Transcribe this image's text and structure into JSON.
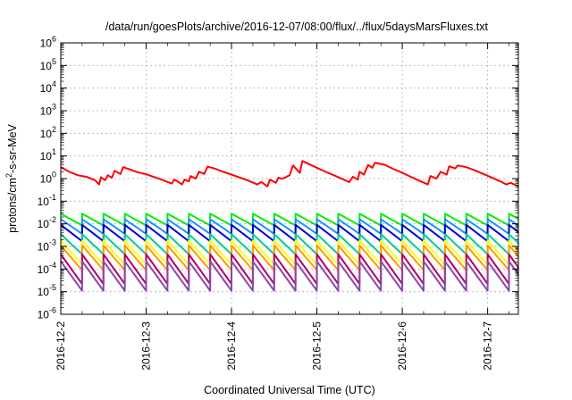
{
  "chart_data": {
    "type": "line",
    "title": "/data/run/goesPlots/archive/2016-12-07/08:00/flux/../flux/5daysMarsFluxes.txt",
    "xlabel": "Coordinated Universal Time (UTC)",
    "ylabel_parts": [
      "protons/cm",
      "2",
      "-s-sr-MeV"
    ],
    "y_scale": "log",
    "ylim_exp": [
      -6,
      6
    ],
    "y_tick_labels": [
      {
        "base": "10",
        "exp": "-6"
      },
      {
        "base": "10",
        "exp": "-5"
      },
      {
        "base": "10",
        "exp": "-4"
      },
      {
        "base": "10",
        "exp": "-3"
      },
      {
        "base": "10",
        "exp": "-2"
      },
      {
        "base": "10",
        "exp": "-1"
      },
      {
        "base": "10",
        "exp": "0"
      },
      {
        "base": "10",
        "exp": "1"
      },
      {
        "base": "10",
        "exp": "2"
      },
      {
        "base": "10",
        "exp": "3"
      },
      {
        "base": "10",
        "exp": "4"
      },
      {
        "base": "10",
        "exp": "5"
      },
      {
        "base": "10",
        "exp": "6"
      }
    ],
    "x_tick_labels": [
      "2016-12-2",
      "2016-12-3",
      "2016-12-4",
      "2016-12-5",
      "2016-12-6",
      "2016-12-7"
    ],
    "xlim_days": [
      0,
      5.36
    ],
    "grid": true,
    "sawtooth_period_days": 0.25,
    "series": [
      {
        "color": "#ff0000",
        "points": [
          [
            0.0,
            3.2
          ],
          [
            0.1,
            2.0
          ],
          [
            0.2,
            1.4
          ],
          [
            0.3,
            1.2
          ],
          [
            0.4,
            0.85
          ],
          [
            0.45,
            0.55
          ],
          [
            0.47,
            1.15
          ],
          [
            0.52,
            0.85
          ],
          [
            0.55,
            1.4
          ],
          [
            0.6,
            1.1
          ],
          [
            0.63,
            2.2
          ],
          [
            0.7,
            1.6
          ],
          [
            0.73,
            3.2
          ],
          [
            0.8,
            2.6
          ],
          [
            0.9,
            1.9
          ],
          [
            1.0,
            1.55
          ],
          [
            1.1,
            1.15
          ],
          [
            1.2,
            0.85
          ],
          [
            1.3,
            0.6
          ],
          [
            1.33,
            0.9
          ],
          [
            1.38,
            0.7
          ],
          [
            1.42,
            0.55
          ],
          [
            1.45,
            0.9
          ],
          [
            1.5,
            0.75
          ],
          [
            1.52,
            1.3
          ],
          [
            1.58,
            1.0
          ],
          [
            1.62,
            2.0
          ],
          [
            1.68,
            1.6
          ],
          [
            1.72,
            3.4
          ],
          [
            1.8,
            2.8
          ],
          [
            1.9,
            2.0
          ],
          [
            2.0,
            1.5
          ],
          [
            2.1,
            1.1
          ],
          [
            2.2,
            0.8
          ],
          [
            2.3,
            0.55
          ],
          [
            2.35,
            0.7
          ],
          [
            2.42,
            0.45
          ],
          [
            2.45,
            0.9
          ],
          [
            2.52,
            0.65
          ],
          [
            2.55,
            1.1
          ],
          [
            2.58,
            1.0
          ],
          [
            2.6,
            1.0
          ],
          [
            2.68,
            1.4
          ],
          [
            2.72,
            3.8
          ],
          [
            2.8,
            1.8
          ],
          [
            2.83,
            6.0
          ],
          [
            2.9,
            4.5
          ],
          [
            3.0,
            3.0
          ],
          [
            3.1,
            2.0
          ],
          [
            3.2,
            1.4
          ],
          [
            3.3,
            0.95
          ],
          [
            3.38,
            0.7
          ],
          [
            3.42,
            1.2
          ],
          [
            3.48,
            0.9
          ],
          [
            3.5,
            2.0
          ],
          [
            3.55,
            1.5
          ],
          [
            3.6,
            4.0
          ],
          [
            3.65,
            3.0
          ],
          [
            3.68,
            5.0
          ],
          [
            3.8,
            4.0
          ],
          [
            3.9,
            2.6
          ],
          [
            4.0,
            1.8
          ],
          [
            4.1,
            1.2
          ],
          [
            4.2,
            0.8
          ],
          [
            4.3,
            0.55
          ],
          [
            4.33,
            1.3
          ],
          [
            4.4,
            1.0
          ],
          [
            4.45,
            2.0
          ],
          [
            4.52,
            1.5
          ],
          [
            4.55,
            3.5
          ],
          [
            4.62,
            2.8
          ],
          [
            4.65,
            3.8
          ],
          [
            4.75,
            3.2
          ],
          [
            4.85,
            2.3
          ],
          [
            4.95,
            1.6
          ],
          [
            5.05,
            1.1
          ],
          [
            5.15,
            0.75
          ],
          [
            5.22,
            0.55
          ],
          [
            5.27,
            0.65
          ],
          [
            5.36,
            0.45
          ]
        ]
      },
      {
        "color": "#00ee00",
        "high": 0.028,
        "low": 0.0085
      },
      {
        "color": "#1e90ff",
        "high": 0.016,
        "low": 0.0036
      },
      {
        "color": "#0000cc",
        "high": 0.009,
        "low": 0.0017
      },
      {
        "color": "#00cc99",
        "high": 0.0035,
        "low": 0.00045
      },
      {
        "color": "#ffff00",
        "high": 0.0018,
        "low": 0.00016
      },
      {
        "color": "#ff9900",
        "high": 0.0011,
        "low": 9e-05
      },
      {
        "color": "#b00060",
        "high": 0.00045,
        "low": 2.2e-05
      },
      {
        "color": "#8e44ad",
        "high": 0.00022,
        "low": 1.1e-05
      }
    ]
  }
}
